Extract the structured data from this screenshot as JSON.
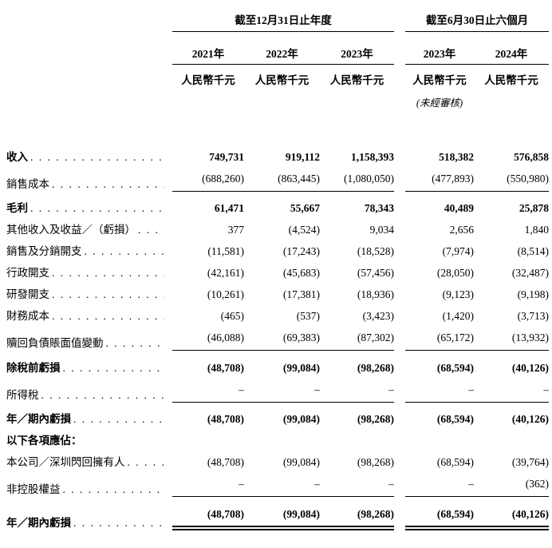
{
  "colors": {
    "text": "#000000",
    "background": "#ffffff",
    "rule": "#000000"
  },
  "table": {
    "groups": [
      {
        "label": "截至12月31日止年度"
      },
      {
        "label": "截至6月30日止六個月"
      }
    ],
    "columns": [
      {
        "year": "2021年",
        "unit": "人民幣千元",
        "note": ""
      },
      {
        "year": "2022年",
        "unit": "人民幣千元",
        "note": ""
      },
      {
        "year": "2023年",
        "unit": "人民幣千元",
        "note": ""
      },
      {
        "year": "2023年",
        "unit": "人民幣千元",
        "note": "(未經審核)"
      },
      {
        "year": "2024年",
        "unit": "人民幣千元",
        "note": ""
      }
    ],
    "rows": [
      {
        "label": "收入",
        "values": [
          "749,731",
          "919,112",
          "1,158,393",
          "518,382",
          "576,858"
        ]
      },
      {
        "label": "銷售成本",
        "values": [
          "(688,260)",
          "(863,445)",
          "(1,080,050)",
          "(477,893)",
          "(550,980)"
        ]
      },
      {
        "label": "毛利",
        "values": [
          "61,471",
          "55,667",
          "78,343",
          "40,489",
          "25,878"
        ]
      },
      {
        "label": "其他收入及收益／（虧損）",
        "values": [
          "377",
          "(4,524)",
          "9,034",
          "2,656",
          "1,840"
        ]
      },
      {
        "label": "銷售及分銷開支",
        "values": [
          "(11,581)",
          "(17,243)",
          "(18,528)",
          "(7,974)",
          "(8,514)"
        ]
      },
      {
        "label": "行政開支",
        "values": [
          "(42,161)",
          "(45,683)",
          "(57,456)",
          "(28,050)",
          "(32,487)"
        ]
      },
      {
        "label": "研發開支",
        "values": [
          "(10,261)",
          "(17,381)",
          "(18,936)",
          "(9,123)",
          "(9,198)"
        ]
      },
      {
        "label": "財務成本",
        "values": [
          "(465)",
          "(537)",
          "(3,423)",
          "(1,420)",
          "(3,713)"
        ]
      },
      {
        "label": "贖回負債賬面值變動",
        "values": [
          "(46,088)",
          "(69,383)",
          "(87,302)",
          "(65,172)",
          "(13,932)"
        ]
      },
      {
        "label": "除稅前虧損",
        "values": [
          "(48,708)",
          "(99,084)",
          "(98,268)",
          "(68,594)",
          "(40,126)"
        ]
      },
      {
        "label": "所得稅",
        "values": [
          "–",
          "–",
          "–",
          "–",
          "–"
        ]
      },
      {
        "label": "年／期內虧損",
        "values": [
          "(48,708)",
          "(99,084)",
          "(98,268)",
          "(68,594)",
          "(40,126)"
        ]
      },
      {
        "label": "以下各項應佔：",
        "values": [
          "",
          "",
          "",
          "",
          ""
        ]
      },
      {
        "label": "本公司／深圳閃回擁有人",
        "values": [
          "(48,708)",
          "(99,084)",
          "(98,268)",
          "(68,594)",
          "(39,764)"
        ]
      },
      {
        "label": "非控股權益",
        "values": [
          "–",
          "–",
          "–",
          "–",
          "(362)"
        ]
      },
      {
        "label": "年／期內虧損",
        "values": [
          "(48,708)",
          "(99,084)",
          "(98,268)",
          "(68,594)",
          "(40,126)"
        ]
      }
    ]
  }
}
